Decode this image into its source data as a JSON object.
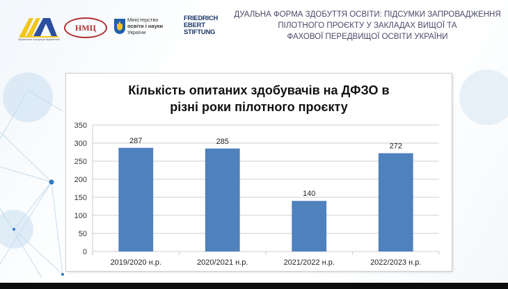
{
  "header": {
    "title_lines": [
      "ДУАЛЬНА ФОРМА  ЗДОБУТТЯ ОСВІТИ: ПІДСУМКИ ЗАПРОВАДЖЕННЯ",
      "ПІЛОТНОГО ПРОЄКТУ У ЗАКЛАДАХ ВИЩОЇ ТА",
      "ФАХОВОЇ ПЕРЕДВИЩОЇ ОСВІТИ УКРАЇНИ"
    ],
    "logos": {
      "ava_caption": "Українська Асоціація Маркетингу",
      "nmc_text": "НМЦ",
      "ministry_lines": [
        "Міністерство",
        "освіти і науки",
        "України"
      ],
      "fes_lines": [
        "FRIEDRICH",
        "EBERT",
        "STIFTUNG"
      ]
    }
  },
  "chart_data": {
    "type": "bar",
    "title": "Кількість опитаних здобувачів на ДФЗО в різні роки пілотного проєкту",
    "title_lines": [
      "Кількість опитаних здобувачів на ДФЗО в",
      "різні роки пілотного проєкту"
    ],
    "categories": [
      "2019/2020 н.р.",
      "2020/2021 н.р.",
      "2021/2022 н.р.",
      "2022/2023 н.р."
    ],
    "values": [
      287,
      285,
      140,
      272
    ],
    "data_labels": [
      "287",
      "285",
      "140",
      "272"
    ],
    "ylim": [
      0,
      350
    ],
    "yticks": [
      0,
      50,
      100,
      150,
      200,
      250,
      300,
      350
    ],
    "grid": true,
    "bar_color": "#4f81bd",
    "xlabel": "",
    "ylabel": ""
  }
}
